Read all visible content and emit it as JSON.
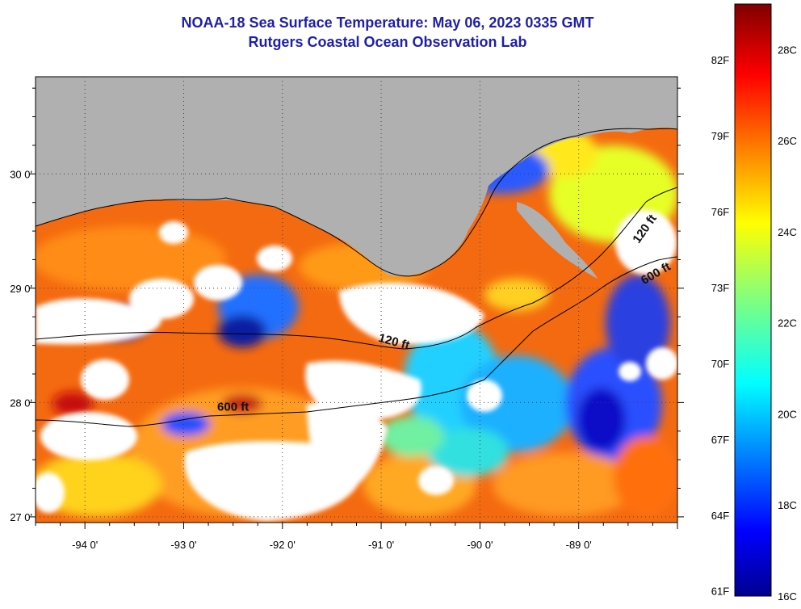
{
  "header": {
    "title": "NOAA-18 Sea Surface Temperature:  May 06, 2023 0335 GMT",
    "subtitle": "Rutgers Coastal Ocean Observation Lab"
  },
  "map": {
    "lon_range": [
      -94.5,
      -88.0
    ],
    "lat_range": [
      26.95,
      30.85
    ],
    "lon_ticks": [
      {
        "value": -94,
        "label": "-94 0'"
      },
      {
        "value": -93,
        "label": "-93 0'"
      },
      {
        "value": -92,
        "label": "-92 0'"
      },
      {
        "value": -91,
        "label": "-91 0'"
      },
      {
        "value": -90,
        "label": "-90 0'"
      },
      {
        "value": -89,
        "label": "-89 0'"
      }
    ],
    "lat_ticks": [
      {
        "value": 30,
        "label": "30 0'"
      },
      {
        "value": 29,
        "label": "29 0'"
      },
      {
        "value": 28,
        "label": "28 0'"
      },
      {
        "value": 27,
        "label": "27 0'"
      }
    ],
    "contour_labels": [
      {
        "text": "120 ft",
        "lon": -90.88,
        "lat": 28.5,
        "rotate": 15
      },
      {
        "text": "600 ft",
        "lon": -92.5,
        "lat": 27.93,
        "rotate": 0
      },
      {
        "text": "120 ft",
        "lon": -88.3,
        "lat": 29.5,
        "rotate": -55
      },
      {
        "text": "600 ft",
        "lon": -88.2,
        "lat": 29.1,
        "rotate": -30
      }
    ],
    "land_color": "#b0b0b0",
    "cloud_color": "#ffffff"
  },
  "colorbar": {
    "c_labels": [
      {
        "value": 16,
        "label": "16C"
      },
      {
        "value": 18,
        "label": "18C"
      },
      {
        "value": 20,
        "label": "20C"
      },
      {
        "value": 22,
        "label": "22C"
      },
      {
        "value": 24,
        "label": "24C"
      },
      {
        "value": 26,
        "label": "26C"
      },
      {
        "value": 28,
        "label": "28C"
      }
    ],
    "f_labels": [
      {
        "value": 61,
        "label": "61F"
      },
      {
        "value": 64,
        "label": "64F"
      },
      {
        "value": 67,
        "label": "67F"
      },
      {
        "value": 70,
        "label": "70F"
      },
      {
        "value": 73,
        "label": "73F"
      },
      {
        "value": 76,
        "label": "76F"
      },
      {
        "value": 79,
        "label": "79F"
      },
      {
        "value": 82,
        "label": "82F"
      }
    ],
    "range_c": [
      16,
      29
    ]
  }
}
